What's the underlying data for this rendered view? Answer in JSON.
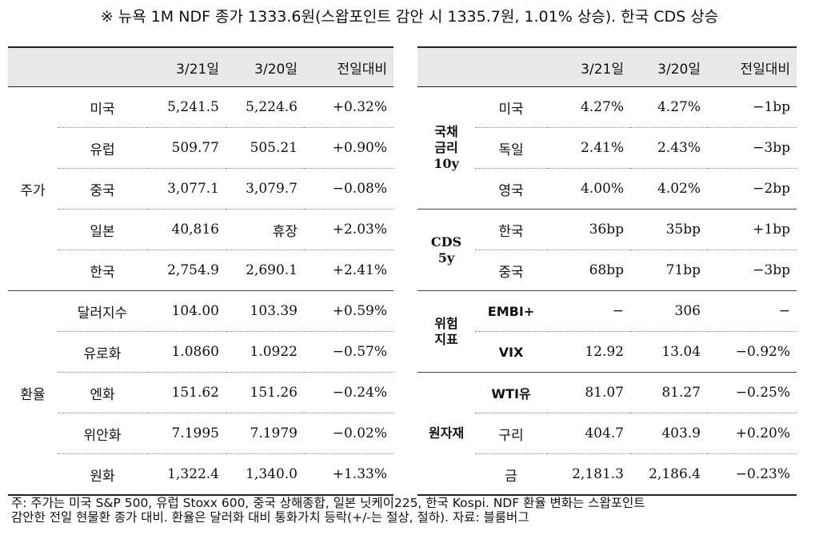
{
  "title": "※ 뉴욕 1M NDF 종가 1333.6원(스왑포인트 감안 시 1335.7원, 1.01% 상승). 한국 CDS 상승",
  "left": {
    "headers": [
      "3/21일",
      "3/20일",
      "전일대비"
    ],
    "groups": [
      {
        "label": "주가",
        "rows": [
          {
            "name": "미국",
            "d1": "5,241.5",
            "d2": "5,224.6",
            "chg": "+0.32%"
          },
          {
            "name": "유럽",
            "d1": "509.77",
            "d2": "505.21",
            "chg": "+0.90%"
          },
          {
            "name": "중국",
            "d1": "3,077.1",
            "d2": "3,079.7",
            "chg": "−0.08%"
          },
          {
            "name": "일본",
            "d1": "40,816",
            "d2": "휴장",
            "chg": "+2.03%"
          },
          {
            "name": "한국",
            "d1": "2,754.9",
            "d2": "2,690.1",
            "chg": "+2.41%"
          }
        ]
      },
      {
        "label": "환율",
        "rows": [
          {
            "name": "달러지수",
            "d1": "104.00",
            "d2": "103.39",
            "chg": "+0.59%"
          },
          {
            "name": "유로화",
            "d1": "1.0860",
            "d2": "1.0922",
            "chg": "−0.57%"
          },
          {
            "name": "엔화",
            "d1": "151.62",
            "d2": "151.26",
            "chg": "−0.24%"
          },
          {
            "name": "위안화",
            "d1": "7.1995",
            "d2": "7.1979",
            "chg": "−0.02%"
          },
          {
            "name": "원화",
            "d1": "1,322.4",
            "d2": "1,340.0",
            "chg": "+1.33%"
          }
        ]
      }
    ]
  },
  "right": {
    "headers": [
      "3/21일",
      "3/20일",
      "전일대비"
    ],
    "groups": [
      {
        "label": "국채\n금리\n10y",
        "rows": [
          {
            "name": "미국",
            "d1": "4.27%",
            "d2": "4.27%",
            "chg": "−1bp"
          },
          {
            "name": "독일",
            "d1": "2.41%",
            "d2": "2.43%",
            "chg": "−3bp"
          },
          {
            "name": "영국",
            "d1": "4.00%",
            "d2": "4.02%",
            "chg": "−2bp"
          }
        ]
      },
      {
        "label": "CDS\n5y",
        "rows": [
          {
            "name": "한국",
            "d1": "36bp",
            "d2": "35bp",
            "chg": "+1bp"
          },
          {
            "name": "중국",
            "d1": "68bp",
            "d2": "71bp",
            "chg": "−3bp"
          }
        ]
      },
      {
        "label": "위험\n지표",
        "rows": [
          {
            "name": "EMBI+",
            "d1": "−",
            "d2": "306",
            "chg": "−"
          },
          {
            "name": "VIX",
            "d1": "12.92",
            "d2": "13.04",
            "chg": "−0.92%"
          }
        ]
      },
      {
        "label": "원자재",
        "rows": [
          {
            "name": "WTI유",
            "d1": "81.07",
            "d2": "81.27",
            "chg": "−0.25%"
          },
          {
            "name": "구리",
            "d1": "404.7",
            "d2": "403.9",
            "chg": "+0.20%"
          },
          {
            "name": "금",
            "d1": "2,181.3",
            "d2": "2,186.4",
            "chg": "−0.23%"
          }
        ]
      }
    ]
  },
  "note": {
    "line1": "주: 주가는 미국 S&P 500, 유럽 Stoxx 600, 중국 상해종합, 일본 닛케이225, 한국 Kospi. NDF 환율 변화는 스왑포인트",
    "line2": "감안한 전일 현물환 종가 대비. 환율은 달러화 대비 통화가치 등락(+/-는 절상, 절하). 자료: 블룸버그"
  }
}
